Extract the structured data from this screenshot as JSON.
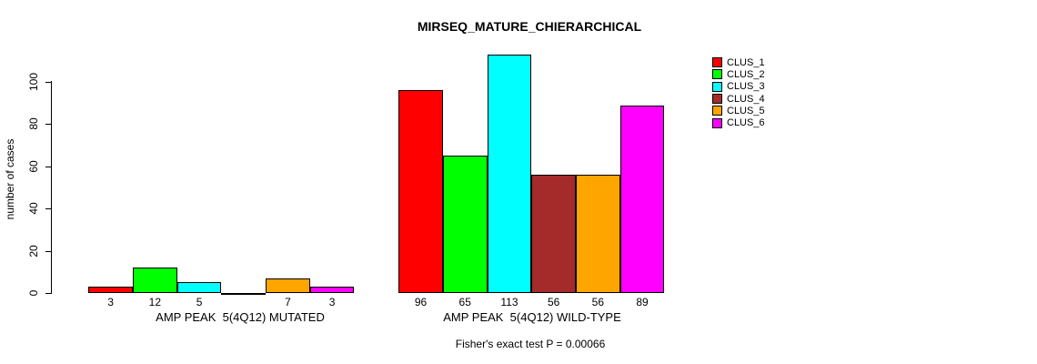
{
  "title": "MIRSEQ_MATURE_CHIERARCHICAL",
  "ylabel": "number of cases",
  "footer": "Fisher's exact test P = 0.00066",
  "legend": {
    "items": [
      {
        "label": "CLUS_1",
        "color": "#FF0000"
      },
      {
        "label": "CLUS_2",
        "color": "#00FF00"
      },
      {
        "label": "CLUS_3",
        "color": "#00FFFF"
      },
      {
        "label": "CLUS_4",
        "color": "#A52A2A"
      },
      {
        "label": "CLUS_5",
        "color": "#FFA500"
      },
      {
        "label": "CLUS_6",
        "color": "#FF00FF"
      }
    ]
  },
  "chart_data": {
    "type": "bar",
    "title": "MIRSEQ_MATURE_CHIERARCHICAL",
    "xlabel": "",
    "ylabel": "number of cases",
    "ylim": [
      0,
      113
    ],
    "yticks": [
      0,
      20,
      40,
      60,
      80,
      100
    ],
    "grid": false,
    "legend_position": "right",
    "series": [
      "CLUS_1",
      "CLUS_2",
      "CLUS_3",
      "CLUS_4",
      "CLUS_5",
      "CLUS_6"
    ],
    "colors": [
      "#FF0000",
      "#00FF00",
      "#00FFFF",
      "#A52A2A",
      "#FFA500",
      "#FF00FF"
    ],
    "groups": [
      {
        "label": "AMP PEAK  5(4Q12) MUTATED",
        "values": [
          3,
          12,
          5,
          0,
          7,
          3
        ],
        "bar_labels": [
          "3",
          "12",
          "5",
          "",
          "7",
          "3"
        ]
      },
      {
        "label": "AMP PEAK  5(4Q12) WILD-TYPE",
        "values": [
          96,
          65,
          113,
          56,
          56,
          89
        ],
        "bar_labels": [
          "96",
          "65",
          "113",
          "56",
          "56",
          "89"
        ]
      }
    ],
    "annotation": "Fisher's exact test P = 0.00066"
  }
}
